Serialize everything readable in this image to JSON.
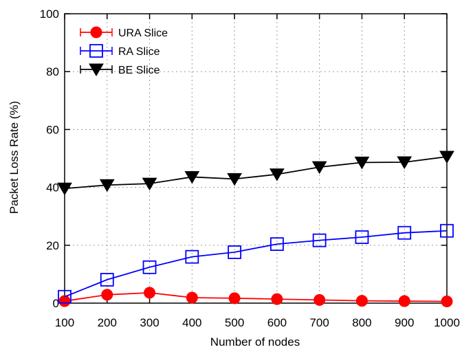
{
  "chart_data": {
    "type": "line",
    "xlabel": "Number of nodes",
    "ylabel": "Packet Loss Rate (%)",
    "x": [
      100,
      200,
      300,
      400,
      500,
      600,
      700,
      800,
      900,
      1000
    ],
    "xticks": [
      100,
      200,
      300,
      400,
      500,
      600,
      700,
      800,
      900,
      1000
    ],
    "yticks": [
      0,
      20,
      40,
      60,
      80,
      100
    ],
    "xlim": [
      100,
      1000
    ],
    "ylim": [
      0,
      100
    ],
    "grid": true,
    "legend_position": "top-left",
    "series": [
      {
        "name": "URA Slice",
        "color": "#ff0000",
        "marker": "filled-circle",
        "values": [
          0.7,
          2.9,
          3.6,
          1.9,
          1.7,
          1.4,
          1.1,
          0.8,
          0.7,
          0.6
        ]
      },
      {
        "name": "RA Slice",
        "color": "#0000ff",
        "marker": "open-square",
        "values": [
          2.2,
          8.1,
          12.4,
          16.0,
          17.6,
          20.4,
          21.7,
          22.8,
          24.3,
          25.0
        ]
      },
      {
        "name": "BE Slice",
        "color": "#000000",
        "marker": "filled-down-triangle",
        "values": [
          39.6,
          40.8,
          41.3,
          43.6,
          42.9,
          44.5,
          47.0,
          48.6,
          48.7,
          50.6
        ]
      }
    ]
  }
}
